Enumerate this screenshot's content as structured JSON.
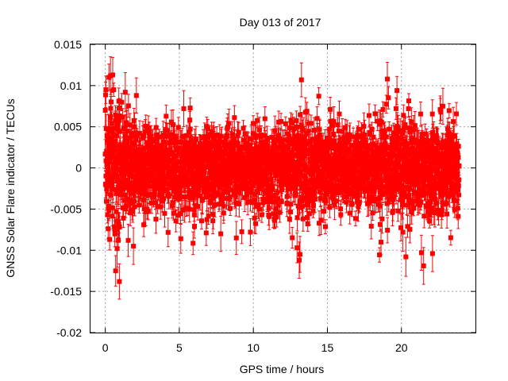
{
  "chart_data": {
    "type": "scatter",
    "title": "Day 013 of 2017",
    "xlabel": "GPS time / hours",
    "ylabel": "GNSS Solar Flare indicator / TECUs",
    "xlim": [
      -1,
      25
    ],
    "ylim": [
      -0.02,
      0.015
    ],
    "x_ticks": [
      "0",
      "5",
      "10",
      "15",
      "20"
    ],
    "x_tick_values": [
      0,
      5,
      10,
      15,
      20
    ],
    "y_ticks": [
      "0.015",
      "0.01",
      "0.005",
      "0",
      "-0.005",
      "-0.01",
      "-0.015",
      "-0.02"
    ],
    "y_tick_values": [
      0.015,
      0.01,
      0.005,
      0,
      -0.005,
      -0.01,
      -0.015,
      -0.02
    ],
    "grid": true,
    "legend": "none",
    "marker": "square",
    "error_bars": true,
    "series_color": "#ff0000",
    "x_range_of_data": [
      0,
      23.9
    ],
    "highlighted_points": [
      {
        "x": 0.0,
        "y": 0.007
      },
      {
        "x": 0.25,
        "y": 0.011
      },
      {
        "x": 0.35,
        "y": 0.0112
      },
      {
        "x": 0.5,
        "y": 0.0113
      },
      {
        "x": 0.7,
        "y": -0.0125
      },
      {
        "x": 0.95,
        "y": -0.0138
      },
      {
        "x": 0.8,
        "y": -0.0098
      },
      {
        "x": 1.55,
        "y": -0.0088
      },
      {
        "x": 1.9,
        "y": -0.0095
      },
      {
        "x": 1.35,
        "y": 0.0092
      },
      {
        "x": 2.1,
        "y": 0.0088
      },
      {
        "x": 5.1,
        "y": -0.0086
      },
      {
        "x": 8.85,
        "y": -0.0085
      },
      {
        "x": 13.25,
        "y": 0.0107
      },
      {
        "x": 13.1,
        "y": -0.0112
      },
      {
        "x": 12.95,
        "y": -0.0097
      },
      {
        "x": 13.15,
        "y": -0.0105
      },
      {
        "x": 19.05,
        "y": 0.0108
      },
      {
        "x": 19.7,
        "y": 0.0094
      },
      {
        "x": 20.3,
        "y": -0.0108
      },
      {
        "x": 21.35,
        "y": -0.0103
      },
      {
        "x": 22.1,
        "y": -0.0104
      },
      {
        "x": 21.5,
        "y": -0.0119
      },
      {
        "x": 20.1,
        "y": -0.0078
      },
      {
        "x": 5.3,
        "y": 0.0072
      },
      {
        "x": 7.8,
        "y": -0.008
      },
      {
        "x": 9.8,
        "y": -0.0078
      },
      {
        "x": 22.8,
        "y": 0.0075
      }
    ]
  }
}
